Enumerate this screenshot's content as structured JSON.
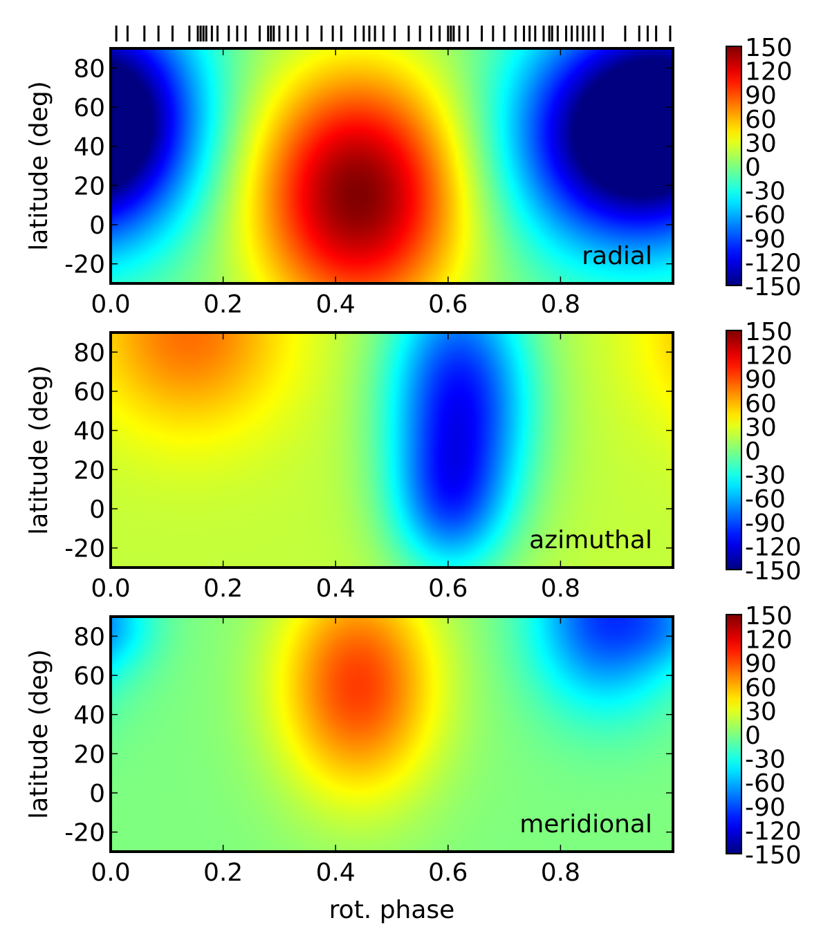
{
  "chart_data": [
    {
      "type": "heatmap",
      "label": "radial",
      "xlabel": "",
      "ylabel": "latitude (deg)",
      "xlim": [
        0.0,
        1.0
      ],
      "ylim": [
        -30,
        90
      ],
      "xticks": [
        "0.0",
        "0.2",
        "0.4",
        "0.6",
        "0.8"
      ],
      "yticks": [
        "-20",
        "0",
        "20",
        "40",
        "60",
        "80"
      ],
      "colorbar": {
        "vmin": -150,
        "vmax": 150,
        "ticks": [
          "-150",
          "-120",
          "-90",
          "-60",
          "-30",
          "0",
          "30",
          "60",
          "90",
          "120",
          "150"
        ]
      },
      "features": [
        {
          "phase": 0.44,
          "latitude": 15,
          "value": 150,
          "width": 0.13,
          "height": 45
        },
        {
          "phase": 0.88,
          "latitude": 45,
          "value": -140,
          "width": 0.13,
          "height": 40
        },
        {
          "phase": 0.02,
          "latitude": 55,
          "value": -120,
          "width": 0.11,
          "height": 40
        }
      ],
      "observation_phases": [
        0.01,
        0.03,
        0.06,
        0.085,
        0.11,
        0.14,
        0.155,
        0.16,
        0.165,
        0.17,
        0.18,
        0.19,
        0.21,
        0.225,
        0.24,
        0.265,
        0.28,
        0.285,
        0.29,
        0.3,
        0.315,
        0.33,
        0.35,
        0.375,
        0.395,
        0.41,
        0.435,
        0.45,
        0.46,
        0.47,
        0.485,
        0.505,
        0.53,
        0.55,
        0.57,
        0.585,
        0.6,
        0.605,
        0.61,
        0.62,
        0.635,
        0.66,
        0.68,
        0.7,
        0.72,
        0.735,
        0.745,
        0.755,
        0.77,
        0.78,
        0.785,
        0.795,
        0.81,
        0.82,
        0.83,
        0.84,
        0.85,
        0.86,
        0.875,
        0.915,
        0.94,
        0.955,
        0.97,
        0.995
      ]
    },
    {
      "type": "heatmap",
      "label": "azimuthal",
      "xlabel": "",
      "ylabel": "latitude (deg)",
      "xlim": [
        0.0,
        1.0
      ],
      "ylim": [
        -30,
        90
      ],
      "xticks": [
        "0.0",
        "0.2",
        "0.4",
        "0.6",
        "0.8"
      ],
      "yticks": [
        "-20",
        "0",
        "20",
        "40",
        "60",
        "80"
      ],
      "colorbar": {
        "vmin": -150,
        "vmax": 150,
        "ticks": [
          "-150",
          "-120",
          "-90",
          "-60",
          "-30",
          "0",
          "30",
          "60",
          "90",
          "120",
          "150"
        ]
      },
      "features": [
        {
          "phase": 0.14,
          "latitude": 90,
          "value": 80,
          "width": 0.12,
          "height": 35
        },
        {
          "phase": 0.62,
          "latitude": 55,
          "value": -110,
          "width": 0.09,
          "height": 45
        },
        {
          "phase": 0.6,
          "latitude": 0,
          "value": -40,
          "width": 0.07,
          "height": 25
        }
      ],
      "background": 20
    },
    {
      "type": "heatmap",
      "label": "meridional",
      "xlabel": "rot. phase",
      "ylabel": "latitude (deg)",
      "xlim": [
        0.0,
        1.0
      ],
      "ylim": [
        -30,
        90
      ],
      "xticks": [
        "0.0",
        "0.2",
        "0.4",
        "0.6",
        "0.8"
      ],
      "yticks": [
        "-20",
        "0",
        "20",
        "40",
        "60",
        "80"
      ],
      "colorbar": {
        "vmin": -150,
        "vmax": 150,
        "ticks": [
          "-150",
          "-120",
          "-90",
          "-60",
          "-30",
          "0",
          "30",
          "60",
          "90",
          "120",
          "150"
        ]
      },
      "features": [
        {
          "phase": 0.44,
          "latitude": 55,
          "value": 95,
          "width": 0.1,
          "height": 40
        },
        {
          "phase": 0.88,
          "latitude": 90,
          "value": -95,
          "width": 0.09,
          "height": 32
        },
        {
          "phase": 0.0,
          "latitude": 85,
          "value": -30,
          "width": 0.06,
          "height": 15
        }
      ],
      "background": 0
    }
  ],
  "colormap": "jet"
}
